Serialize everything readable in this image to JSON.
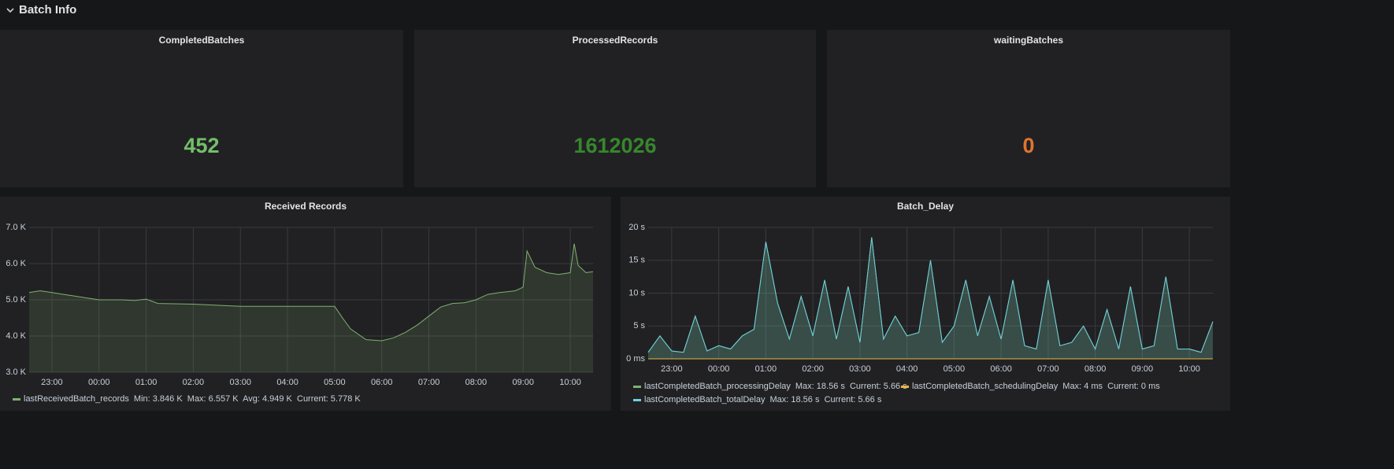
{
  "header": {
    "title": "Batch Info"
  },
  "stats": [
    {
      "title": "CompletedBatches",
      "value": 452,
      "color": "#73bf69"
    },
    {
      "title": "ProcessedRecords",
      "value": 1612026,
      "color": "#37872d"
    },
    {
      "title": "waitingBatches",
      "value": 0,
      "color": "#e0752d"
    }
  ],
  "chart_data": [
    {
      "type": "line",
      "title": "Received Records",
      "x": [
        "22:31",
        "22:45",
        "23:00",
        "23:15",
        "23:30",
        "23:45",
        "00:00",
        "00:30",
        "00:45",
        "01:00",
        "01:15",
        "02:00",
        "02:30",
        "03:00",
        "04:00",
        "05:00",
        "05:10",
        "05:20",
        "05:40",
        "06:00",
        "06:15",
        "06:30",
        "06:45",
        "07:00",
        "07:15",
        "07:30",
        "07:45",
        "08:00",
        "08:15",
        "08:30",
        "08:50",
        "09:00",
        "09:05",
        "09:15",
        "09:30",
        "09:45",
        "10:00",
        "10:05",
        "10:10",
        "10:20",
        "10:29"
      ],
      "series": [
        {
          "name": "lastReceivedBatch_records",
          "color": "#7eb26d",
          "legend_stats": "Min: 3.846 K  Max: 6.557 K  Avg: 4.949 K  Current: 5.778 K",
          "values": [
            5200,
            5250,
            5200,
            5150,
            5100,
            5050,
            5000,
            5000,
            4980,
            5020,
            4900,
            4880,
            4850,
            4820,
            4820,
            4820,
            4500,
            4200,
            3900,
            3870,
            3950,
            4100,
            4300,
            4550,
            4800,
            4900,
            4920,
            5000,
            5150,
            5200,
            5250,
            5350,
            6350,
            5900,
            5750,
            5700,
            5750,
            6550,
            5950,
            5750,
            5778
          ]
        }
      ],
      "xlim": [
        "22:31",
        "10:29"
      ],
      "xticks": [
        "23:00",
        "00:00",
        "01:00",
        "02:00",
        "03:00",
        "04:00",
        "05:00",
        "06:00",
        "07:00",
        "08:00",
        "09:00",
        "10:00"
      ],
      "ylim": [
        3000,
        7000
      ],
      "yticks": [
        {
          "value": 7000,
          "label": "7.0 K"
        },
        {
          "value": 6000,
          "label": "6.0 K"
        },
        {
          "value": 5000,
          "label": "5.0 K"
        },
        {
          "value": 4000,
          "label": "4.0 K"
        },
        {
          "value": 3000,
          "label": "3.0 K"
        }
      ],
      "grid": true
    },
    {
      "type": "line",
      "title": "Batch_Delay",
      "x": [
        "22:30",
        "22:45",
        "23:00",
        "23:15",
        "23:30",
        "23:45",
        "00:00",
        "00:15",
        "00:30",
        "00:45",
        "01:00",
        "01:15",
        "01:30",
        "01:45",
        "02:00",
        "02:15",
        "02:30",
        "02:45",
        "03:00",
        "03:15",
        "03:30",
        "03:45",
        "04:00",
        "04:15",
        "04:30",
        "04:45",
        "05:00",
        "05:15",
        "05:30",
        "05:45",
        "06:00",
        "06:15",
        "06:30",
        "06:45",
        "07:00",
        "07:15",
        "07:30",
        "07:45",
        "08:00",
        "08:15",
        "08:30",
        "08:45",
        "09:00",
        "09:15",
        "09:30",
        "09:45",
        "10:00",
        "10:15",
        "10:30"
      ],
      "series": [
        {
          "name": "lastCompletedBatch_processingDelay",
          "color": "#7eb26d",
          "legend_stats": "Max: 18.56 s  Current: 5.66 s",
          "values": [
            1.0,
            3.5,
            1.2,
            1.0,
            6.5,
            1.2,
            2.0,
            1.5,
            3.5,
            4.5,
            17.8,
            8.5,
            3.0,
            9.5,
            3.5,
            12.0,
            3.0,
            11.0,
            2.5,
            18.5,
            3.0,
            6.5,
            3.5,
            4.0,
            15.0,
            2.5,
            5.0,
            12.0,
            3.5,
            9.5,
            3.0,
            12.0,
            2.0,
            1.5,
            12.0,
            2.0,
            2.5,
            5.0,
            1.5,
            7.5,
            1.5,
            11.0,
            1.5,
            2.0,
            12.5,
            1.5,
            1.5,
            1.0,
            5.66
          ]
        },
        {
          "name": "lastCompletedBatch_schedulingDelay",
          "color": "#eab839",
          "legend_stats": "Max: 4 ms  Current: 0 ms",
          "values": [
            0,
            0,
            0,
            0,
            0,
            0,
            0,
            0,
            0,
            0,
            0,
            0,
            0,
            0,
            0,
            0,
            0,
            0,
            0,
            0,
            0,
            0,
            0,
            0,
            0,
            0,
            0,
            0,
            0,
            0,
            0,
            0,
            0,
            0,
            0,
            0,
            0,
            0,
            0,
            0,
            0,
            0,
            0,
            0,
            0,
            0,
            0,
            0,
            0
          ]
        },
        {
          "name": "lastCompletedBatch_totalDelay",
          "color": "#6ed0e0",
          "legend_stats": "Max: 18.56 s  Current: 5.66 s",
          "values": [
            1.0,
            3.5,
            1.2,
            1.0,
            6.5,
            1.2,
            2.0,
            1.5,
            3.5,
            4.5,
            17.8,
            8.5,
            3.0,
            9.5,
            3.5,
            12.0,
            3.0,
            11.0,
            2.5,
            18.5,
            3.0,
            6.5,
            3.5,
            4.0,
            15.0,
            2.5,
            5.0,
            12.0,
            3.5,
            9.5,
            3.0,
            12.0,
            2.0,
            1.5,
            12.0,
            2.0,
            2.5,
            5.0,
            1.5,
            7.5,
            1.5,
            11.0,
            1.5,
            2.0,
            12.5,
            1.5,
            1.5,
            1.0,
            5.66
          ]
        }
      ],
      "xlim": [
        "22:30",
        "10:30"
      ],
      "xticks": [
        "23:00",
        "00:00",
        "01:00",
        "02:00",
        "03:00",
        "04:00",
        "05:00",
        "06:00",
        "07:00",
        "08:00",
        "09:00",
        "10:00"
      ],
      "ylim": [
        0,
        20
      ],
      "yticks": [
        {
          "value": 20,
          "label": "20 s"
        },
        {
          "value": 15,
          "label": "15 s"
        },
        {
          "value": 10,
          "label": "10 s"
        },
        {
          "value": 5,
          "label": "5 s"
        },
        {
          "value": 0,
          "label": "0 ms"
        }
      ],
      "grid": true
    }
  ]
}
